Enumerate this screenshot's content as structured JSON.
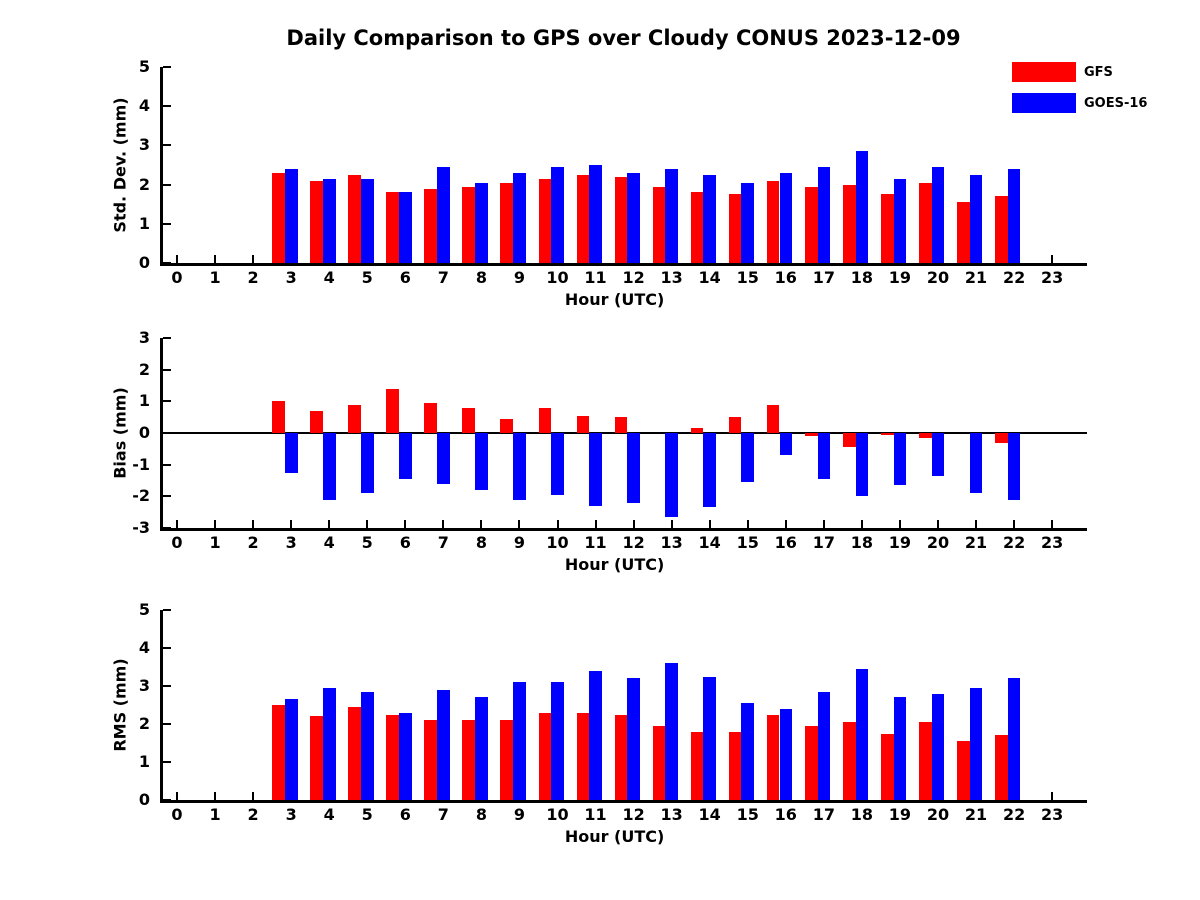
{
  "title": "Daily Comparison to GPS over Cloudy CONUS 2023-12-09",
  "legend": {
    "items": [
      {
        "label": "GFS",
        "color": "#ff0000"
      },
      {
        "label": "GOES-16",
        "color": "#0000ff"
      }
    ]
  },
  "axes": {
    "xlabel": "Hour (UTC)",
    "hour_ticks": [
      0,
      1,
      2,
      3,
      4,
      5,
      6,
      7,
      8,
      9,
      10,
      11,
      12,
      13,
      14,
      15,
      16,
      17,
      18,
      19,
      20,
      21,
      22,
      23
    ]
  },
  "colors": {
    "gfs": "#ff0000",
    "goes16": "#0000ff",
    "axis": "#000000",
    "background": "#ffffff"
  },
  "chart_data": [
    {
      "type": "bar",
      "panel": "std-dev",
      "title": "Daily Comparison to GPS over Cloudy CONUS 2023-12-09",
      "xlabel": "Hour (UTC)",
      "ylabel": "Std. Dev. (mm)",
      "ylim": [
        0,
        5
      ],
      "yticks": [
        0,
        1,
        2,
        3,
        4,
        5
      ],
      "hours": [
        3,
        4,
        5,
        6,
        7,
        8,
        9,
        10,
        11,
        12,
        13,
        14,
        15,
        16,
        17,
        18,
        19,
        20,
        21,
        22
      ],
      "series": [
        {
          "name": "GFS",
          "color": "#ff0000",
          "values": [
            2.3,
            2.1,
            2.25,
            1.8,
            1.9,
            1.95,
            2.05,
            2.15,
            2.25,
            2.2,
            1.95,
            1.8,
            1.75,
            2.1,
            1.95,
            2.0,
            1.75,
            2.05,
            1.55,
            1.7
          ]
        },
        {
          "name": "GOES-16",
          "color": "#0000ff",
          "values": [
            2.4,
            2.15,
            2.15,
            1.8,
            2.45,
            2.05,
            2.3,
            2.45,
            2.5,
            2.3,
            2.4,
            2.25,
            2.05,
            2.3,
            2.45,
            2.85,
            2.15,
            2.45,
            2.25,
            2.4
          ]
        }
      ]
    },
    {
      "type": "bar",
      "panel": "bias",
      "xlabel": "Hour (UTC)",
      "ylabel": "Bias (mm)",
      "ylim": [
        -3,
        3
      ],
      "yticks": [
        -3,
        -2,
        -1,
        0,
        1,
        2,
        3
      ],
      "zero_line": true,
      "hours": [
        3,
        4,
        5,
        6,
        7,
        8,
        9,
        10,
        11,
        12,
        13,
        14,
        15,
        16,
        17,
        18,
        19,
        20,
        21,
        22
      ],
      "series": [
        {
          "name": "GFS",
          "color": "#ff0000",
          "values": [
            1.0,
            0.7,
            0.9,
            1.4,
            0.95,
            0.8,
            0.45,
            0.8,
            0.55,
            0.5,
            0.0,
            0.15,
            0.5,
            0.9,
            -0.1,
            -0.45,
            -0.05,
            -0.15,
            0.0,
            -0.3
          ]
        },
        {
          "name": "GOES-16",
          "color": "#0000ff",
          "values": [
            -1.25,
            -2.1,
            -1.9,
            -1.45,
            -1.6,
            -1.8,
            -2.1,
            -1.95,
            -2.3,
            -2.2,
            -2.65,
            -2.35,
            -1.55,
            -0.7,
            -1.45,
            -2.0,
            -1.65,
            -1.35,
            -1.9,
            -2.1
          ]
        }
      ]
    },
    {
      "type": "bar",
      "panel": "rms",
      "xlabel": "Hour (UTC)",
      "ylabel": "RMS (mm)",
      "ylim": [
        0,
        5
      ],
      "yticks": [
        0,
        1,
        2,
        3,
        4,
        5
      ],
      "hours": [
        3,
        4,
        5,
        6,
        7,
        8,
        9,
        10,
        11,
        12,
        13,
        14,
        15,
        16,
        17,
        18,
        19,
        20,
        21,
        22
      ],
      "series": [
        {
          "name": "GFS",
          "color": "#ff0000",
          "values": [
            2.5,
            2.2,
            2.45,
            2.25,
            2.1,
            2.1,
            2.1,
            2.3,
            2.3,
            2.25,
            1.95,
            1.8,
            1.8,
            2.25,
            1.95,
            2.05,
            1.75,
            2.05,
            1.55,
            1.7
          ]
        },
        {
          "name": "GOES-16",
          "color": "#0000ff",
          "values": [
            2.65,
            2.95,
            2.85,
            2.3,
            2.9,
            2.7,
            3.1,
            3.1,
            3.4,
            3.2,
            3.6,
            3.25,
            2.55,
            2.4,
            2.85,
            3.45,
            2.7,
            2.8,
            2.95,
            3.2
          ]
        }
      ]
    }
  ]
}
